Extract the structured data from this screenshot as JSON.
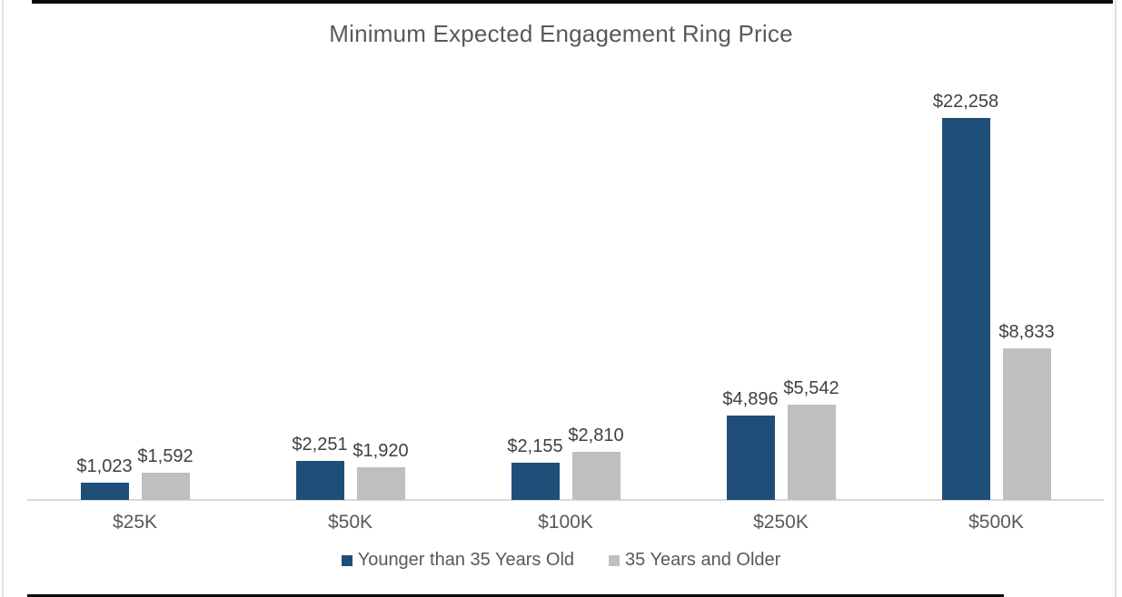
{
  "chart_data": {
    "type": "bar",
    "title": "Minimum Expected Engagement Ring Price",
    "categories": [
      "$25K",
      "$50K",
      "$100K",
      "$250K",
      "$500K"
    ],
    "series": [
      {
        "name": "Younger than 35 Years Old",
        "color": "#1F4E79",
        "values": [
          1023,
          2251,
          2155,
          4896,
          22258
        ],
        "value_labels": [
          "$1,023",
          "$2,251",
          "$2,155",
          "$4,896",
          "$22,258"
        ]
      },
      {
        "name": "35 Years and Older",
        "color": "#BFBFBF",
        "values": [
          1592,
          1920,
          2810,
          5542,
          8833
        ],
        "value_labels": [
          "$1,592",
          "$1,920",
          "$2,810",
          "$5,542",
          "$8,833"
        ]
      }
    ],
    "xlabel": "",
    "ylabel": "",
    "ylim": [
      0,
      24000
    ],
    "grid": false,
    "y_axis_visible": false,
    "legend_position": "bottom",
    "data_labels_visible": true,
    "colors": {
      "title_text": "#595959",
      "category_text": "#595959",
      "value_label_text": "#404040",
      "legend_text": "#595959",
      "axis_line": "#D9D9D9",
      "background": "#FFFFFF"
    }
  }
}
